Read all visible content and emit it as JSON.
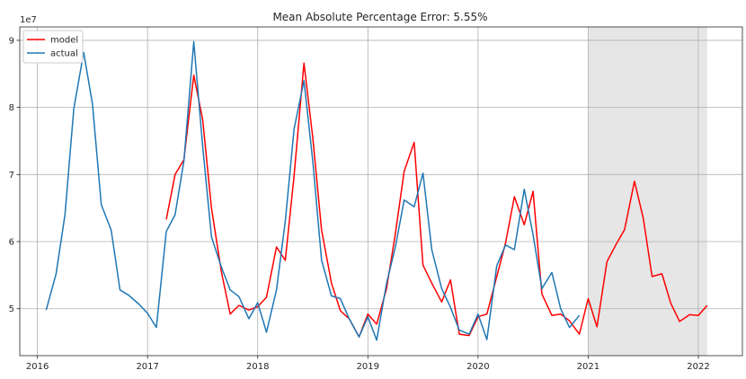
{
  "chart_data": {
    "type": "line",
    "title": "Mean Absolute Percentage Error: 5.55%",
    "xlabel": "",
    "ylabel": "",
    "y_offset_label": "1e7",
    "xlim": [
      2015.84,
      2022.4
    ],
    "ylim": [
      4.3,
      9.2
    ],
    "x_ticks": [
      2016,
      2017,
      2018,
      2019,
      2020,
      2021,
      2022
    ],
    "x_tick_labels": [
      "2016",
      "2017",
      "2018",
      "2019",
      "2020",
      "2021",
      "2022"
    ],
    "y_ticks": [
      5,
      6,
      7,
      8,
      9
    ],
    "y_tick_labels": [
      "5",
      "6",
      "7",
      "8",
      "9"
    ],
    "grid": true,
    "legend_position": "upper-left",
    "forecast_region": {
      "start": 2021.0,
      "end": 2022.08,
      "color": "#e6e6e6"
    },
    "series": [
      {
        "name": "model",
        "color": "#ff0000",
        "x": [
          2017.17,
          2017.25,
          2017.33,
          2017.42,
          2017.5,
          2017.58,
          2017.67,
          2017.75,
          2017.83,
          2017.92,
          2018.0,
          2018.08,
          2018.17,
          2018.25,
          2018.33,
          2018.42,
          2018.5,
          2018.58,
          2018.67,
          2018.75,
          2018.83,
          2018.92,
          2019.0,
          2019.08,
          2019.17,
          2019.25,
          2019.33,
          2019.42,
          2019.5,
          2019.58,
          2019.67,
          2019.75,
          2019.83,
          2019.92,
          2020.0,
          2020.08,
          2020.17,
          2020.25,
          2020.33,
          2020.42,
          2020.5,
          2020.58,
          2020.67,
          2020.75,
          2020.83,
          2020.92,
          2021.0,
          2021.08,
          2021.17,
          2021.25,
          2021.33,
          2021.42,
          2021.5,
          2021.58,
          2021.67,
          2021.75,
          2021.83,
          2021.92,
          2022.0,
          2022.08
        ],
        "values": [
          6.33,
          7.0,
          7.22,
          8.48,
          7.82,
          6.5,
          5.55,
          4.92,
          5.05,
          4.98,
          5.03,
          5.17,
          5.92,
          5.72,
          6.98,
          8.66,
          7.55,
          6.17,
          5.38,
          4.97,
          4.85,
          4.58,
          4.92,
          4.77,
          5.3,
          6.12,
          7.05,
          7.48,
          5.65,
          5.38,
          5.1,
          5.43,
          4.62,
          4.6,
          4.88,
          4.92,
          5.48,
          5.98,
          6.67,
          6.25,
          6.75,
          5.22,
          4.9,
          4.92,
          4.82,
          4.62,
          5.15,
          4.73,
          5.7,
          5.95,
          6.18,
          6.9,
          6.35,
          5.48,
          5.52,
          5.08,
          4.81,
          4.91,
          4.9,
          5.05
        ]
      },
      {
        "name": "actual",
        "color": "#1f77b4",
        "x": [
          2016.08,
          2016.17,
          2016.25,
          2016.33,
          2016.42,
          2016.5,
          2016.58,
          2016.67,
          2016.75,
          2016.83,
          2016.92,
          2017.0,
          2017.08,
          2017.17,
          2017.25,
          2017.33,
          2017.42,
          2017.5,
          2017.58,
          2017.67,
          2017.75,
          2017.83,
          2017.92,
          2018.0,
          2018.08,
          2018.17,
          2018.25,
          2018.33,
          2018.42,
          2018.5,
          2018.58,
          2018.67,
          2018.75,
          2018.83,
          2018.92,
          2019.0,
          2019.08,
          2019.17,
          2019.25,
          2019.33,
          2019.42,
          2019.5,
          2019.58,
          2019.67,
          2019.75,
          2019.83,
          2019.92,
          2020.0,
          2020.08,
          2020.17,
          2020.25,
          2020.33,
          2020.42,
          2020.5,
          2020.58,
          2020.67,
          2020.75,
          2020.83,
          2020.92
        ],
        "values": [
          4.98,
          5.52,
          6.4,
          7.98,
          8.82,
          8.05,
          6.55,
          6.17,
          5.28,
          5.2,
          5.07,
          4.93,
          4.72,
          6.15,
          6.4,
          7.2,
          8.98,
          7.42,
          6.07,
          5.62,
          5.28,
          5.18,
          4.85,
          5.09,
          4.65,
          5.28,
          6.3,
          7.68,
          8.4,
          7.2,
          5.72,
          5.19,
          5.15,
          4.85,
          4.58,
          4.88,
          4.53,
          5.38,
          5.92,
          6.62,
          6.52,
          7.02,
          5.88,
          5.3,
          5.02,
          4.68,
          4.62,
          4.92,
          4.54,
          5.64,
          5.95,
          5.88,
          6.78,
          6.1,
          5.3,
          5.54,
          5.0,
          4.72,
          4.9
        ]
      }
    ]
  }
}
